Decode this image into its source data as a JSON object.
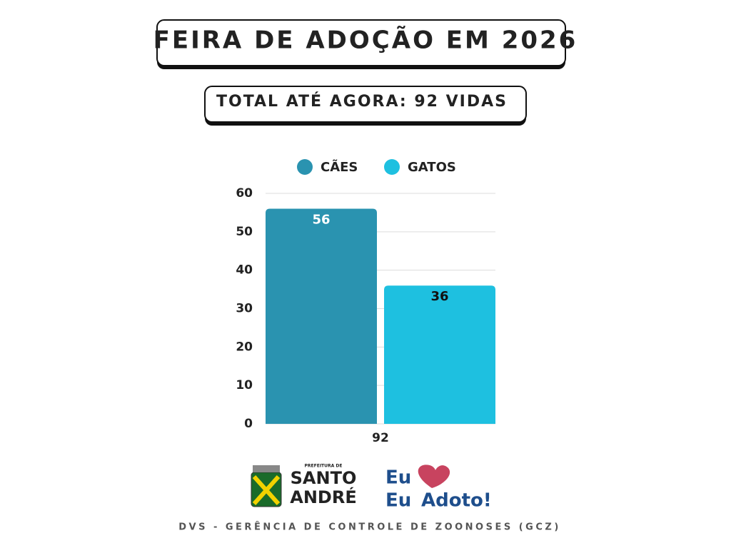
{
  "chart_data": {
    "type": "bar",
    "title": "FEIRA DE ADOÇÃO EM 2026",
    "subtitle": "TOTAL ATÉ AGORA: 92 VIDAS",
    "categories": [
      "92"
    ],
    "series": [
      {
        "name": "CÃES",
        "color": "#2a93b0",
        "label_color": "#ffffff",
        "values": [
          56
        ]
      },
      {
        "name": "GATOS",
        "color": "#1ec0e0",
        "label_color": "#111111",
        "values": [
          36
        ]
      }
    ],
    "ylim": [
      0,
      60
    ],
    "yticks": [
      0,
      10,
      20,
      30,
      40,
      50,
      60
    ],
    "grid": true,
    "legend": "top"
  },
  "logos": {
    "city_prefix": "PREFEITURA DE",
    "city_line1": "SANTO",
    "city_line2": "ANDRÉ",
    "campaign_line1": "Eu",
    "campaign_line2a": "Eu",
    "campaign_line2b": "Adoto!"
  },
  "footer": "DVS - GERÊNCIA DE CONTROLE DE ZOONOSES (GCZ)"
}
